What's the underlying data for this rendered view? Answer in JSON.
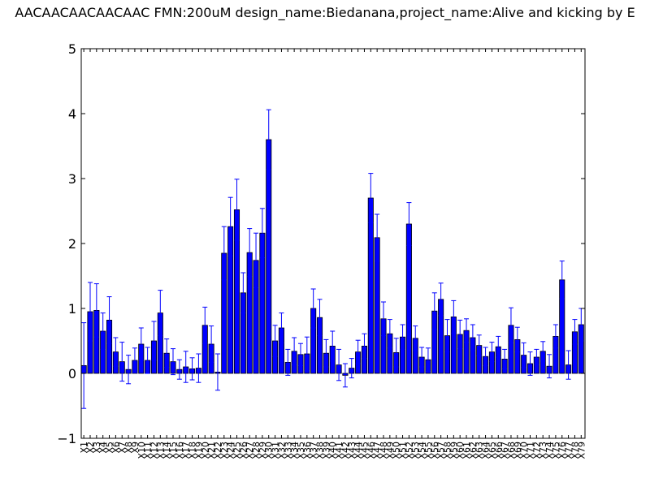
{
  "chart_data": {
    "type": "bar",
    "title": "AACAACAACAACAAC  FMN:200uM  design_name:Biedanana,project_name:Alive and kicking by E",
    "xlabel": "",
    "ylabel": "",
    "ylim": [
      -1,
      5
    ],
    "yticks": [
      -1,
      0,
      1,
      2,
      3,
      4,
      5
    ],
    "grid": false,
    "bar_color": "#0000ff",
    "errorbar_color": "#0000ff",
    "categories": [
      "X1",
      "X2",
      "X3",
      "X4",
      "X5",
      "X6",
      "X7",
      "X8",
      "X9",
      "X10",
      "X11",
      "X12",
      "X13",
      "X14",
      "X15",
      "X16",
      "X17",
      "X18",
      "X19",
      "X20",
      "X21",
      "X22",
      "X23",
      "X24",
      "X25",
      "X26",
      "X27",
      "X28",
      "X29",
      "X30",
      "X31",
      "X32",
      "X33",
      "X34",
      "X35",
      "X36",
      "X37",
      "X38",
      "X39",
      "X40",
      "X41",
      "X42",
      "X43",
      "X44",
      "X45",
      "X46",
      "X47",
      "X48",
      "X49",
      "X50",
      "X51",
      "X52",
      "X53",
      "X54",
      "X55",
      "X56",
      "X57",
      "X58",
      "X59",
      "X60",
      "X61",
      "X62",
      "X63",
      "X64",
      "X65",
      "X66",
      "X67",
      "X68",
      "X69",
      "X70",
      "X71",
      "X72",
      "X73",
      "X74",
      "X75",
      "X76",
      "X77",
      "X78",
      "X79"
    ],
    "values": [
      0.12,
      0.95,
      0.97,
      0.65,
      0.82,
      0.33,
      0.18,
      0.06,
      0.2,
      0.45,
      0.2,
      0.5,
      0.93,
      0.31,
      0.18,
      0.06,
      0.1,
      0.07,
      0.08,
      0.74,
      0.45,
      0.02,
      1.85,
      2.26,
      2.52,
      1.24,
      1.86,
      1.74,
      2.16,
      3.6,
      0.5,
      0.7,
      0.17,
      0.34,
      0.29,
      0.3,
      1.0,
      0.86,
      0.31,
      0.42,
      0.13,
      -0.03,
      0.08,
      0.33,
      0.42,
      2.7,
      2.09,
      0.84,
      0.61,
      0.32,
      0.56,
      2.3,
      0.54,
      0.25,
      0.21,
      0.96,
      1.14,
      0.58,
      0.87,
      0.6,
      0.66,
      0.55,
      0.43,
      0.26,
      0.33,
      0.41,
      0.22,
      0.74,
      0.52,
      0.28,
      0.15,
      0.25,
      0.34,
      0.11,
      0.57,
      1.44,
      0.13,
      0.64,
      0.75
    ],
    "errors": [
      0.66,
      0.45,
      0.41,
      0.28,
      0.36,
      0.22,
      0.3,
      0.22,
      0.19,
      0.25,
      0.2,
      0.3,
      0.35,
      0.22,
      0.2,
      0.15,
      0.24,
      0.17,
      0.22,
      0.28,
      0.28,
      0.28,
      0.41,
      0.45,
      0.47,
      0.31,
      0.37,
      0.42,
      0.38,
      0.46,
      0.24,
      0.23,
      0.2,
      0.21,
      0.17,
      0.26,
      0.3,
      0.28,
      0.21,
      0.23,
      0.24,
      0.18,
      0.15,
      0.18,
      0.19,
      0.38,
      0.36,
      0.26,
      0.22,
      0.22,
      0.19,
      0.33,
      0.19,
      0.15,
      0.18,
      0.28,
      0.25,
      0.25,
      0.25,
      0.22,
      0.18,
      0.2,
      0.16,
      0.14,
      0.15,
      0.16,
      0.15,
      0.27,
      0.19,
      0.19,
      0.18,
      0.12,
      0.15,
      0.18,
      0.18,
      0.29,
      0.22,
      0.19,
      0.25
    ]
  }
}
